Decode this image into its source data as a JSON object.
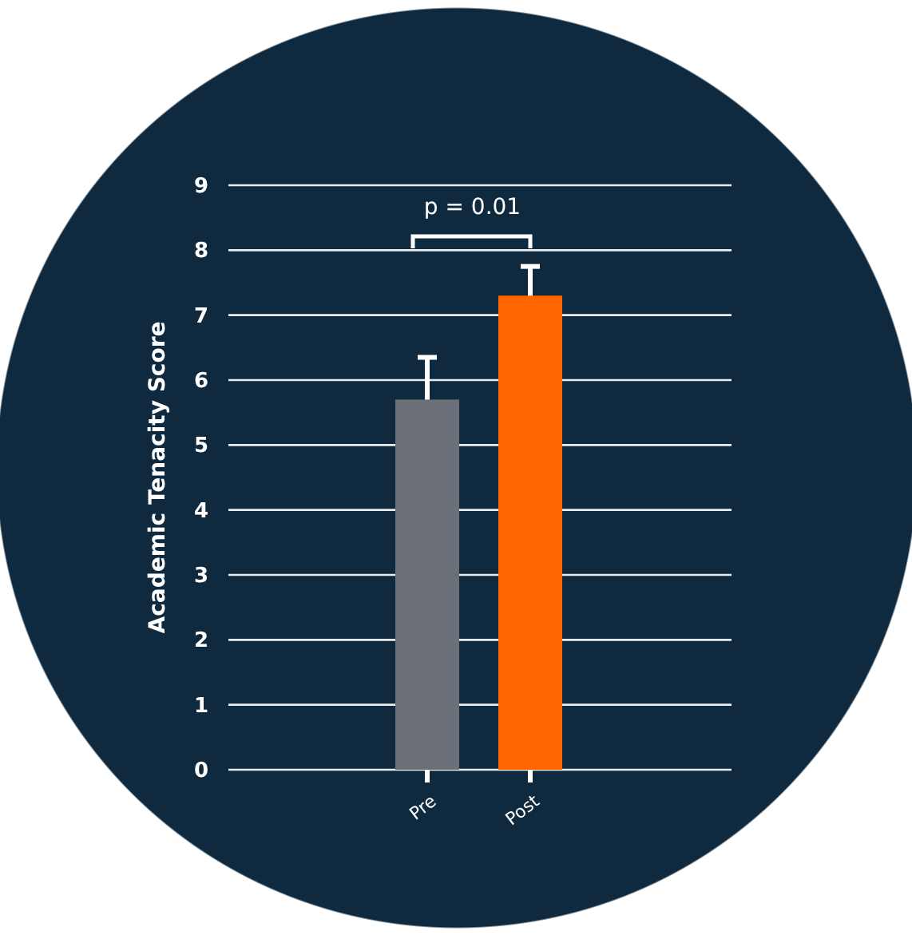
{
  "chart_data": {
    "type": "bar",
    "ylabel": "Academic Tenacity Score",
    "categories": [
      "Pre",
      "Post"
    ],
    "values": [
      5.7,
      7.3
    ],
    "colors": [
      "#6b6f78",
      "#ff6600"
    ],
    "errors": [
      0.65,
      0.45
    ],
    "ylim": [
      0,
      9
    ],
    "yticks": [
      0,
      1,
      2,
      3,
      4,
      5,
      6,
      7,
      8,
      9
    ],
    "grid": "y",
    "annotations": [
      "p = 0.01"
    ]
  }
}
